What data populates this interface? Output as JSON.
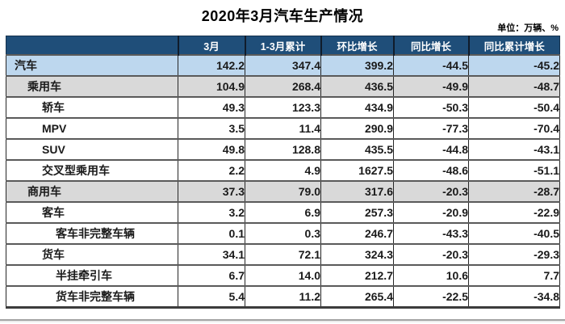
{
  "title": "2020年3月汽车生产情况",
  "unit_note": "单位：万辆、%",
  "colors": {
    "header_bg": "#1F4E79",
    "header_text": "#FFFFFF",
    "row_highlight_blue": "#BDD7EE",
    "row_highlight_gray": "#D9D9D9",
    "row_white": "#FFFFFF",
    "grid_border": "#5A5A5A",
    "text": "#1A1A1A"
  },
  "chart_data": {
    "type": "table",
    "title": "2020年3月汽车生产情况",
    "unit": "万辆、%",
    "columns": [
      "",
      "3月",
      "1-3月累计",
      "环比增长",
      "同比增长",
      "同比累计增长"
    ],
    "rows": [
      {
        "label": "汽车",
        "indent": 0,
        "style": "blue",
        "values": [
          142.2,
          347.4,
          399.2,
          -44.5,
          -45.2
        ]
      },
      {
        "label": "乘用车",
        "indent": 1,
        "style": "gray",
        "values": [
          104.9,
          268.4,
          436.5,
          -49.9,
          -48.7
        ]
      },
      {
        "label": "轿车",
        "indent": 2,
        "style": "white",
        "values": [
          49.3,
          123.3,
          434.9,
          -50.3,
          -50.4
        ]
      },
      {
        "label": "MPV",
        "indent": 2,
        "style": "white",
        "values": [
          3.5,
          11.4,
          290.9,
          -77.3,
          -70.4
        ]
      },
      {
        "label": "SUV",
        "indent": 2,
        "style": "white",
        "values": [
          49.8,
          128.8,
          435.5,
          -44.8,
          -43.1
        ]
      },
      {
        "label": "交叉型乘用车",
        "indent": 2,
        "style": "white",
        "values": [
          2.2,
          4.9,
          1627.5,
          -48.6,
          -51.1
        ]
      },
      {
        "label": "商用车",
        "indent": 1,
        "style": "gray",
        "values": [
          37.3,
          79.0,
          317.6,
          -20.3,
          -28.7
        ]
      },
      {
        "label": "客车",
        "indent": 2,
        "style": "white",
        "values": [
          3.2,
          6.9,
          257.3,
          -20.9,
          -22.9
        ]
      },
      {
        "label": "客车非完整车辆",
        "indent": 3,
        "style": "white",
        "values": [
          0.1,
          0.3,
          246.7,
          -43.3,
          -40.5
        ]
      },
      {
        "label": "货车",
        "indent": 2,
        "style": "white",
        "values": [
          34.1,
          72.1,
          324.3,
          -20.3,
          -29.3
        ]
      },
      {
        "label": "半挂牵引车",
        "indent": 3,
        "style": "white",
        "values": [
          6.7,
          14.0,
          212.7,
          10.6,
          7.7
        ]
      },
      {
        "label": "货车非完整车辆",
        "indent": 3,
        "style": "white",
        "values": [
          5.4,
          11.2,
          265.4,
          -22.5,
          -34.8
        ]
      }
    ]
  }
}
